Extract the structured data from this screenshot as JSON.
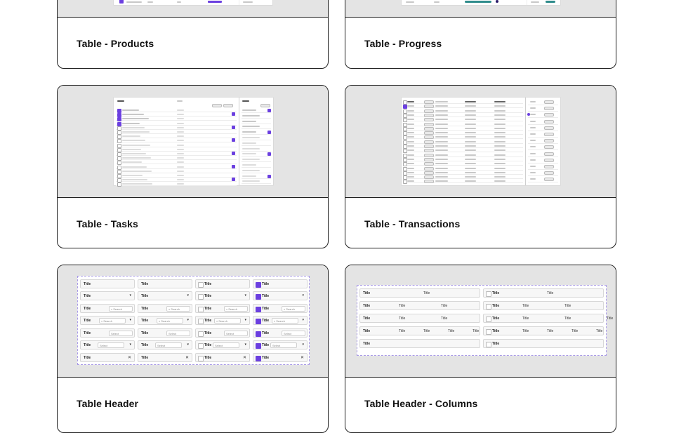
{
  "cards": [
    {
      "id": "products",
      "title": "Table - Products"
    },
    {
      "id": "progress",
      "title": "Table - Progress"
    },
    {
      "id": "tasks",
      "title": "Table - Tasks"
    },
    {
      "id": "transactions",
      "title": "Table - Transactions"
    },
    {
      "id": "table-header",
      "title": "Table Header"
    },
    {
      "id": "table-header-columns",
      "title": "Table Header - Columns"
    }
  ],
  "header_preview": {
    "title": "Title",
    "search": "Search",
    "select": "Select",
    "close_icon": "✕",
    "chevron_icon": "▾",
    "search_icon": "⌕"
  },
  "columns_preview": {
    "title": "Title"
  }
}
